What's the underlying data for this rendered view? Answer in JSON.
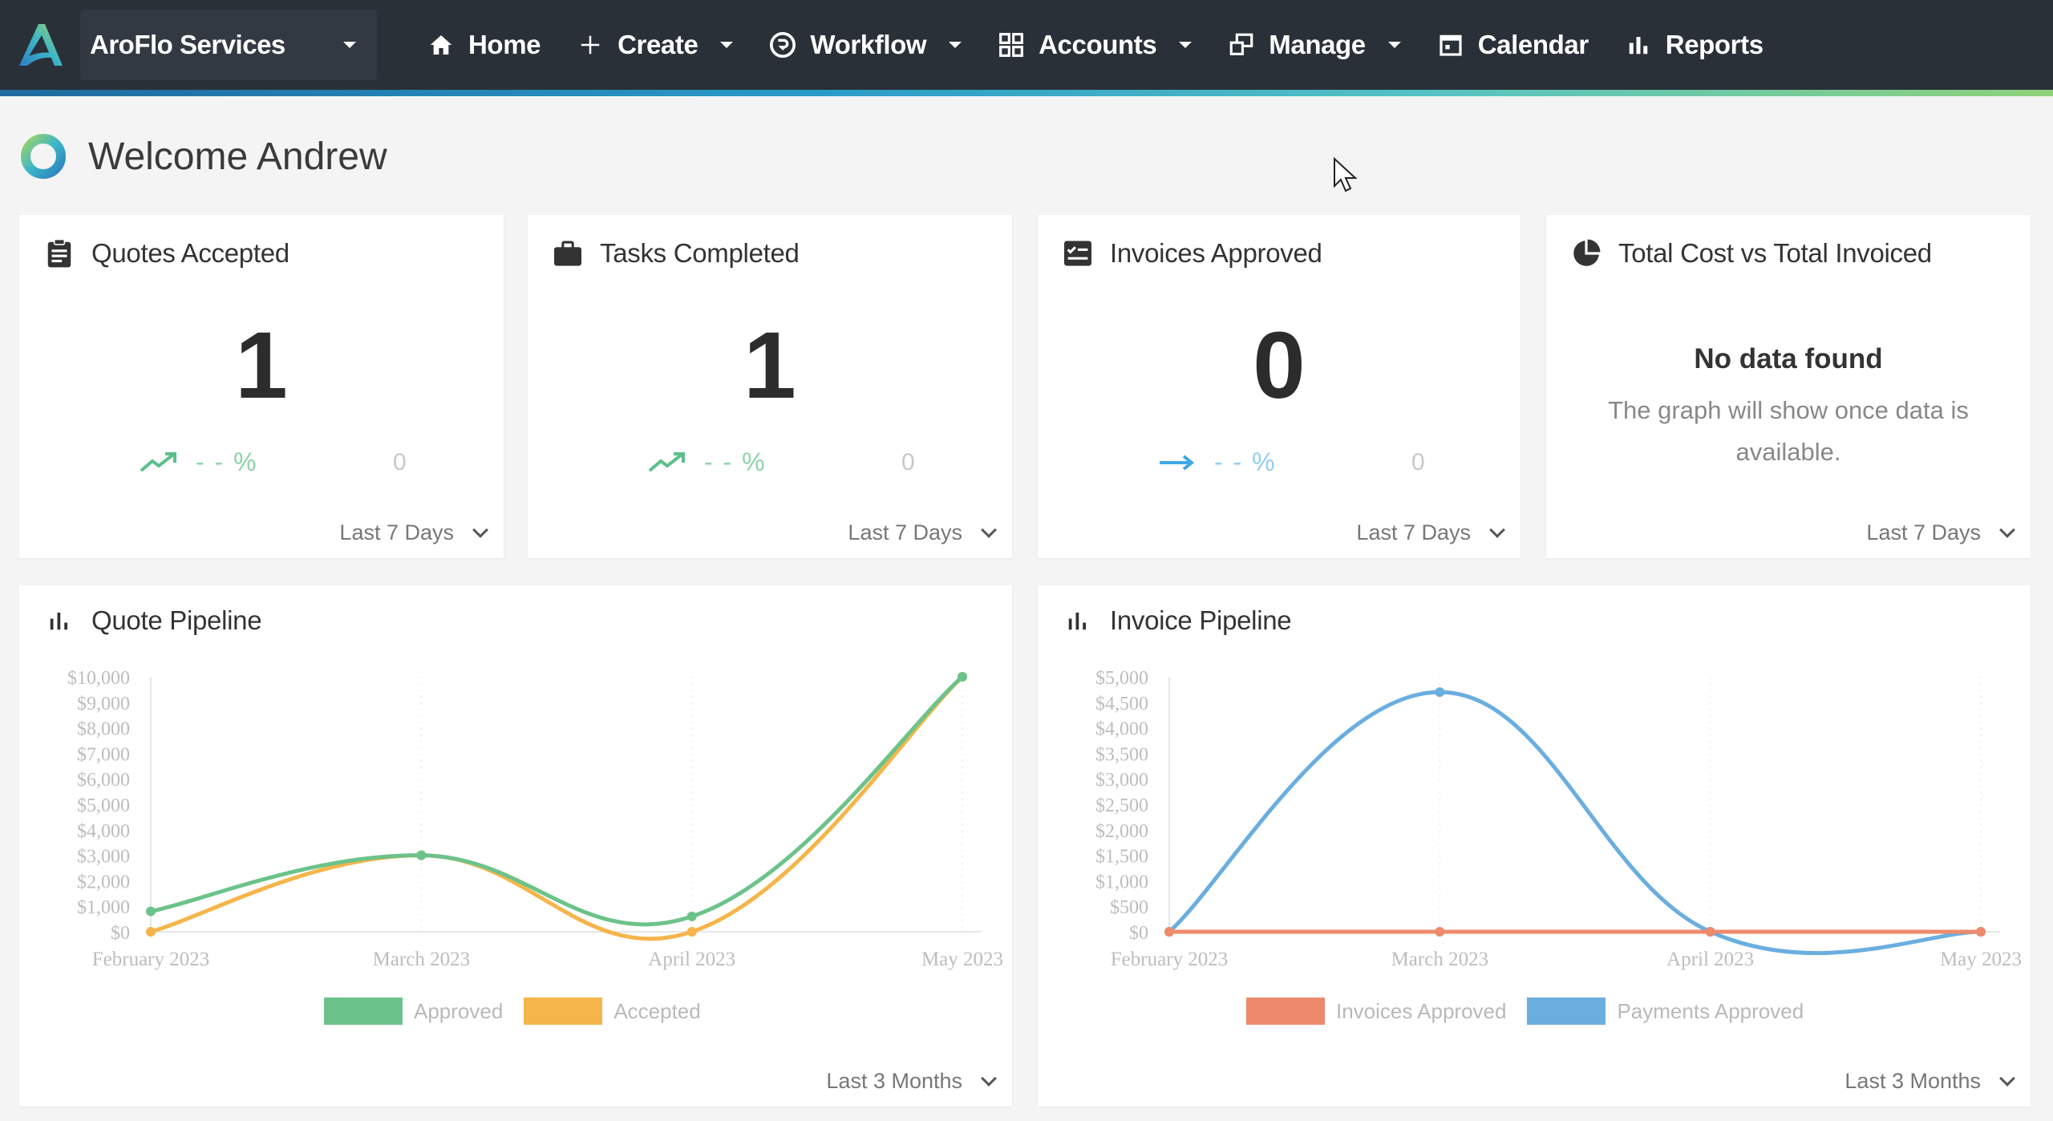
{
  "nav": {
    "brand": "AroFlo Services",
    "items": [
      {
        "label": "Home",
        "icon": "home-icon",
        "dropdown": false
      },
      {
        "label": "Create",
        "icon": "plus-icon",
        "dropdown": true
      },
      {
        "label": "Workflow",
        "icon": "workflow-icon",
        "dropdown": true
      },
      {
        "label": "Accounts",
        "icon": "grid-icon",
        "dropdown": true
      },
      {
        "label": "Manage",
        "icon": "manage-icon",
        "dropdown": true
      },
      {
        "label": "Calendar",
        "icon": "calendar-icon",
        "dropdown": false
      },
      {
        "label": "Reports",
        "icon": "bar-chart-icon",
        "dropdown": false
      }
    ]
  },
  "welcome": {
    "title": "Welcome Andrew"
  },
  "stats": [
    {
      "title": "Quotes Accepted",
      "icon": "clipboard-icon",
      "value": "1",
      "trend": "up",
      "pct": "- - %",
      "prev": "0",
      "period": "Last 7 Days"
    },
    {
      "title": "Tasks Completed",
      "icon": "briefcase-icon",
      "value": "1",
      "trend": "up",
      "pct": "- - %",
      "prev": "0",
      "period": "Last 7 Days"
    },
    {
      "title": "Invoices Approved",
      "icon": "invoice-check-icon",
      "value": "0",
      "trend": "flat",
      "pct": "- - %",
      "prev": "0",
      "period": "Last 7 Days"
    }
  ],
  "cost_card": {
    "title": "Total Cost vs Total Invoiced",
    "icon": "pie-chart-icon",
    "nodata_title": "No data found",
    "nodata_sub": "The graph will show once data is available.",
    "period": "Last 7 Days"
  },
  "quote_pipeline": {
    "title": "Quote Pipeline",
    "icon": "bar-chart-icon",
    "period": "Last 3 Months"
  },
  "invoice_pipeline": {
    "title": "Invoice Pipeline",
    "icon": "bar-chart-icon",
    "period": "Last 3 Months"
  },
  "colors": {
    "green": "#6cc38a",
    "orange": "#f5b54a",
    "blue": "#6aaee0",
    "red": "#ee8a6c",
    "nav_bg": "#2a3038",
    "trend_up": "#5cc08a",
    "trend_flat": "#3fa7e6"
  },
  "chart_data": [
    {
      "type": "line",
      "title": "Quote Pipeline",
      "categories": [
        "February 2023",
        "March 2023",
        "April 2023",
        "May 2023"
      ],
      "ylim": [
        0,
        10000
      ],
      "yticks": [
        "$0",
        "$1,000",
        "$2,000",
        "$3,000",
        "$4,000",
        "$5,000",
        "$6,000",
        "$7,000",
        "$8,000",
        "$9,000",
        "$10,000"
      ],
      "series": [
        {
          "name": "Approved",
          "values": [
            800,
            3000,
            600,
            10000
          ],
          "color": "#6cc38a"
        },
        {
          "name": "Accepted",
          "values": [
            0,
            3000,
            0,
            10000
          ],
          "color": "#f5b54a"
        }
      ],
      "legend": "bottom",
      "grid": true
    },
    {
      "type": "line",
      "title": "Invoice Pipeline",
      "categories": [
        "February 2023",
        "March 2023",
        "April 2023",
        "May 2023"
      ],
      "ylim": [
        0,
        5000
      ],
      "yticks": [
        "$0",
        "$500",
        "$1,000",
        "$1,500",
        "$2,000",
        "$2,500",
        "$3,000",
        "$3,500",
        "$4,000",
        "$4,500",
        "$5,000"
      ],
      "series": [
        {
          "name": "Invoices Approved",
          "values": [
            0,
            0,
            0,
            0
          ],
          "color": "#ee8a6c"
        },
        {
          "name": "Payments Approved",
          "values": [
            0,
            4700,
            0,
            0
          ],
          "color": "#6aaee0"
        }
      ],
      "legend": "bottom",
      "grid": true
    }
  ]
}
